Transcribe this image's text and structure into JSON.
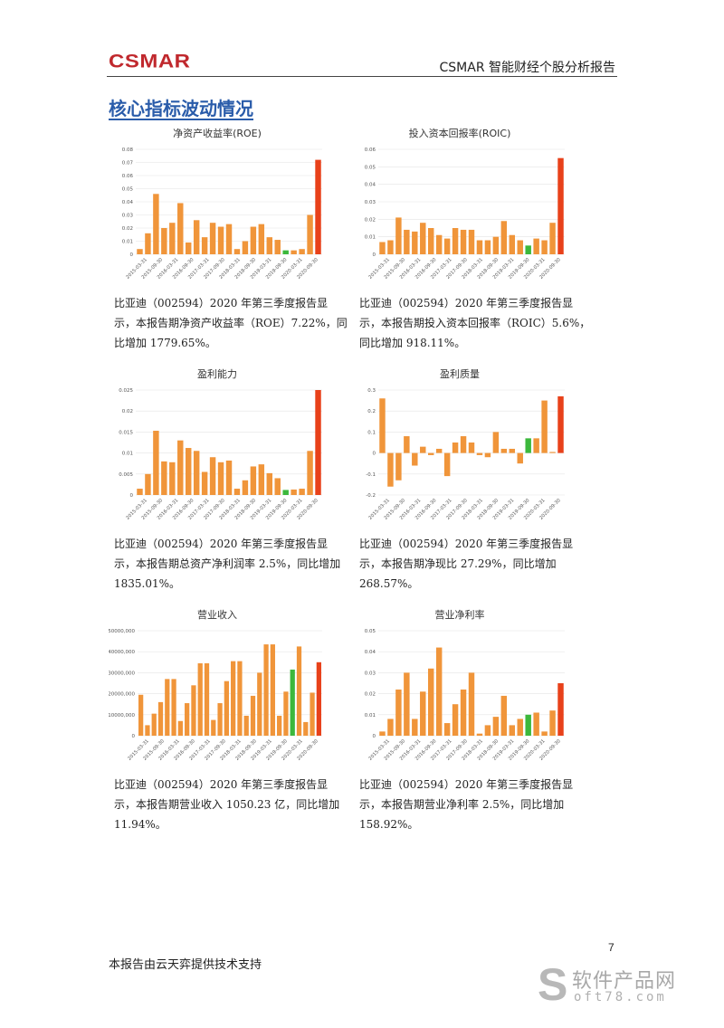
{
  "header": {
    "logo": "CSMAR",
    "logo_color": "#c0282d",
    "title": "CSMAR 智能财经个股分析报告"
  },
  "section_title": "核心指标波动情况",
  "colors": {
    "orange": "#f0953a",
    "red": "#e8411a",
    "green": "#3cb83c"
  },
  "charts": [
    {
      "title": "净资产收益率(ROE)",
      "description": "比亚迪（002594）2020 年第三季度报告显示，本报告期净资产收益率（ROE）7.22%，同比增加 1779.65%。"
    },
    {
      "title": "投入资本回报率(ROIC)",
      "description": "比亚迪（002594）2020 年第三季度报告显示，本报告期投入资本回报率（ROIC）5.6%，同比增加 918.11%。"
    },
    {
      "title": "盈利能力",
      "description": "比亚迪（002594）2020 年第三季度报告显示，本报告期总资产净利润率 2.5%，同比增加 1835.01%。"
    },
    {
      "title": "盈利质量",
      "description": "比亚迪（002594）2020 年第三季度报告显示，本报告期净现比 27.29%，同比增加 268.57%。"
    },
    {
      "title": "营业收入",
      "description": "比亚迪（002594）2020 年第三季度报告显示，本报告期营业收入 1050.23 亿，同比增加 11.94%。"
    },
    {
      "title": "营业净利率",
      "description": "比亚迪（002594）2020 年第三季度报告显示，本报告期营业净利率 2.5%，同比增加 158.92%。"
    }
  ],
  "chart_data": [
    {
      "type": "bar",
      "title": "净资产收益率(ROE)",
      "ylim": [
        0,
        0.08
      ],
      "yticks": [
        "0",
        "0.01",
        "0.02",
        "0.03",
        "0.04",
        "0.05",
        "0.06",
        "0.07",
        "0.08"
      ],
      "xtick_labels": [
        "2015-03-31",
        "2015-09-30",
        "2016-03-31",
        "2016-09-30",
        "2017-03-31",
        "2017-09-30",
        "2018-03-31",
        "2018-09-30",
        "2019-03-31",
        "2019-09-30",
        "2020-03-31",
        "2020-09-30"
      ],
      "values": [
        0.004,
        0.016,
        0.046,
        0.02,
        0.024,
        0.039,
        0.009,
        0.026,
        0.013,
        0.024,
        0.021,
        0.023,
        0.004,
        0.01,
        0.021,
        0.023,
        0.013,
        0.011,
        0.003,
        0.003,
        0.004,
        0.03,
        0.072
      ],
      "colors": [
        "o",
        "o",
        "o",
        "o",
        "o",
        "o",
        "o",
        "o",
        "o",
        "o",
        "o",
        "o",
        "o",
        "o",
        "o",
        "o",
        "o",
        "o",
        "g",
        "o",
        "o",
        "o",
        "r"
      ]
    },
    {
      "type": "bar",
      "title": "投入资本回报率(ROIC)",
      "ylim": [
        0,
        0.06
      ],
      "yticks": [
        "0",
        "0.01",
        "0.02",
        "0.03",
        "0.04",
        "0.05",
        "0.06"
      ],
      "xtick_labels": [
        "2015-03-31",
        "2015-09-30",
        "2016-03-31",
        "2016-09-30",
        "2017-03-31",
        "2017-09-30",
        "2018-03-31",
        "2018-09-30",
        "2019-03-31",
        "2019-09-30",
        "2020-03-31",
        "2020-09-30"
      ],
      "values": [
        0.007,
        0.008,
        0.021,
        0.014,
        0.013,
        0.018,
        0.015,
        0.011,
        0.009,
        0.015,
        0.014,
        0.014,
        0.008,
        0.008,
        0.01,
        0.019,
        0.011,
        0.008,
        0.005,
        0.009,
        0.008,
        0.018,
        0.055
      ],
      "colors": [
        "o",
        "o",
        "o",
        "o",
        "o",
        "o",
        "o",
        "o",
        "o",
        "o",
        "o",
        "o",
        "o",
        "o",
        "o",
        "o",
        "o",
        "o",
        "g",
        "o",
        "o",
        "o",
        "r"
      ]
    },
    {
      "type": "bar",
      "title": "盈利能力",
      "ylim": [
        0,
        0.025
      ],
      "yticks": [
        "0",
        "0.005",
        "0.01",
        "0.015",
        "0.02",
        "0.025"
      ],
      "xtick_labels": [
        "2015-03-31",
        "2015-09-30",
        "2016-03-31",
        "2016-09-30",
        "2017-03-31",
        "2017-09-30",
        "2018-03-31",
        "2018-09-30",
        "2019-03-31",
        "2019-09-30",
        "2020-03-31",
        "2020-09-30"
      ],
      "values": [
        0.0015,
        0.005,
        0.0153,
        0.008,
        0.0078,
        0.013,
        0.0112,
        0.0105,
        0.0055,
        0.009,
        0.0078,
        0.0082,
        0.0015,
        0.0035,
        0.0068,
        0.0073,
        0.0052,
        0.004,
        0.0012,
        0.0013,
        0.0015,
        0.0105,
        0.025
      ],
      "colors": [
        "o",
        "o",
        "o",
        "o",
        "o",
        "o",
        "o",
        "o",
        "o",
        "o",
        "o",
        "o",
        "o",
        "o",
        "o",
        "o",
        "o",
        "o",
        "g",
        "o",
        "o",
        "o",
        "r"
      ]
    },
    {
      "type": "bar",
      "title": "盈利质量",
      "ylim": [
        -0.2,
        0.3
      ],
      "yticks": [
        "-0.2",
        "-0.1",
        "0",
        "0.1",
        "0.2",
        "0.3"
      ],
      "xtick_labels": [
        "2015-03-31",
        "2015-09-30",
        "2016-03-31",
        "2016-09-30",
        "2017-03-31",
        "2017-09-30",
        "2018-03-31",
        "2018-09-30",
        "2019-03-31",
        "2019-09-30",
        "2020-03-31",
        "2020-09-30"
      ],
      "values": [
        0.26,
        -0.16,
        -0.13,
        0.08,
        -0.06,
        0.03,
        -0.01,
        0.02,
        -0.11,
        0.05,
        0.08,
        0.05,
        -0.01,
        -0.02,
        0.1,
        0.02,
        0.02,
        -0.05,
        0.07,
        0.07,
        0.25,
        0.005,
        0.27
      ],
      "colors": [
        "o",
        "o",
        "o",
        "o",
        "o",
        "o",
        "o",
        "o",
        "o",
        "o",
        "o",
        "o",
        "o",
        "o",
        "o",
        "o",
        "o",
        "o",
        "g",
        "o",
        "o",
        "o",
        "r"
      ]
    },
    {
      "type": "bar",
      "title": "营业收入",
      "ylim": [
        0,
        50000
      ],
      "yticks": [
        "0",
        "10000,000",
        "20000,000",
        "30000,000",
        "40000,000",
        "50000,000"
      ],
      "xtick_labels": [
        "2015-03-31",
        "2015-09-30",
        "2016-03-31",
        "2016-09-30",
        "2017-03-31",
        "2017-09-30",
        "2018-03-31",
        "2018-09-30",
        "2019-03-31",
        "2019-09-30",
        "2020-03-31",
        "2020-09-30"
      ],
      "values": [
        19500,
        5000,
        10500,
        16000,
        27000,
        27000,
        7000,
        15500,
        24000,
        34500,
        34500,
        7500,
        15500,
        26000,
        35500,
        35500,
        9500,
        19000,
        30000,
        43500,
        43500,
        9500,
        21000,
        31500,
        42500,
        6500,
        20500,
        35000
      ],
      "colors": [
        "o",
        "o",
        "o",
        "o",
        "o",
        "o",
        "o",
        "o",
        "o",
        "o",
        "o",
        "o",
        "o",
        "o",
        "o",
        "o",
        "o",
        "o",
        "o",
        "o",
        "o",
        "o",
        "o",
        "g",
        "o",
        "o",
        "o",
        "r"
      ]
    },
    {
      "type": "bar",
      "title": "营业净利率",
      "ylim": [
        0,
        0.05
      ],
      "yticks": [
        "0",
        "0.01",
        "0.02",
        "0.03",
        "0.04",
        "0.05"
      ],
      "xtick_labels": [
        "2015-03-31",
        "2015-09-30",
        "2016-03-31",
        "2016-09-30",
        "2017-03-31",
        "2017-09-30",
        "2018-03-31",
        "2018-09-30",
        "2019-03-31",
        "2019-09-30",
        "2020-03-31",
        "2020-09-30"
      ],
      "values": [
        0.002,
        0.008,
        0.022,
        0.03,
        0.008,
        0.021,
        0.032,
        0.042,
        0.006,
        0.015,
        0.022,
        0.03,
        0.001,
        0.005,
        0.009,
        0.019,
        0.005,
        0.008,
        0.01,
        0.011,
        0.002,
        0.012,
        0.025
      ],
      "colors": [
        "o",
        "o",
        "o",
        "o",
        "o",
        "o",
        "o",
        "o",
        "o",
        "o",
        "o",
        "o",
        "o",
        "o",
        "o",
        "o",
        "o",
        "o",
        "g",
        "o",
        "o",
        "o",
        "r"
      ]
    }
  ],
  "page_number": "7",
  "footer_text": "本报告由云天弈提供技术支持",
  "watermark": {
    "symbol": "S",
    "cn": "软件产品网",
    "url": "oft78.com"
  }
}
